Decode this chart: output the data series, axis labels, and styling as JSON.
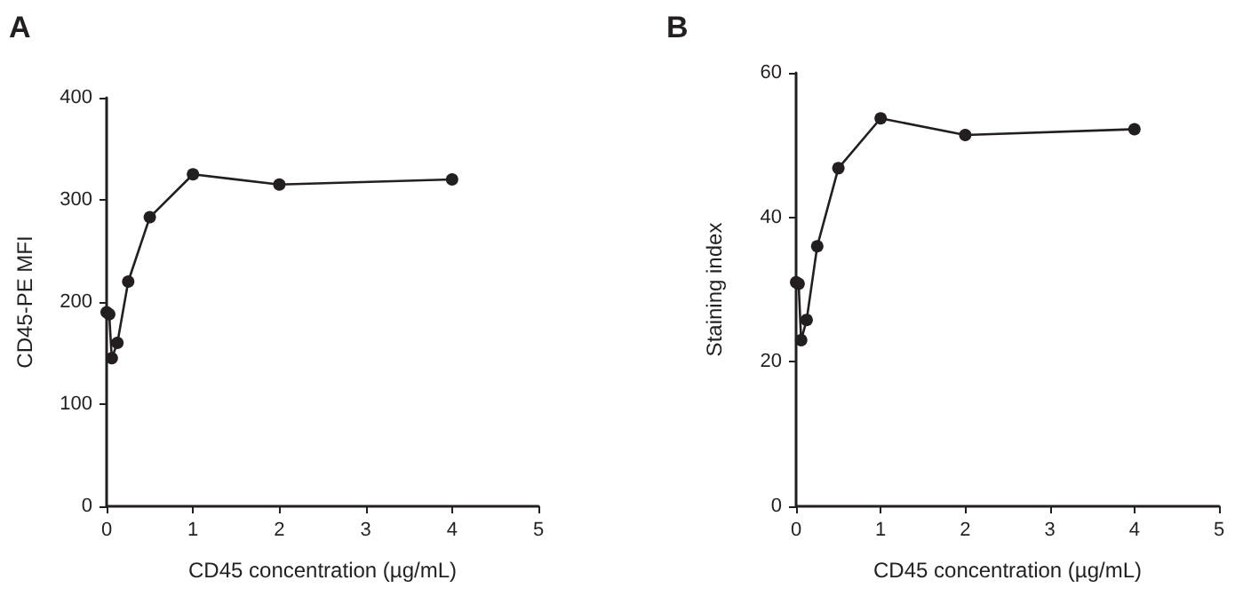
{
  "chart_data": [
    {
      "type": "line",
      "title": "A",
      "xlabel": "CD45 concentration (µg/mL)",
      "ylabel": "CD45-PE MFI",
      "x": [
        0,
        0.03,
        0.06,
        0.125,
        0.25,
        0.5,
        1,
        2,
        4
      ],
      "series": [
        {
          "color": "#231f20",
          "values": [
            190,
            188,
            145,
            160,
            220,
            283,
            325,
            315,
            320
          ]
        }
      ],
      "xlim": [
        0,
        5
      ],
      "xticks": [
        0,
        1,
        2,
        3,
        4,
        5
      ],
      "ylim": [
        0,
        400
      ],
      "yticks": [
        0,
        100,
        200,
        300,
        400
      ],
      "marker": "circle",
      "line_style": "solid",
      "grid": false
    },
    {
      "type": "line",
      "title": "B",
      "xlabel": "CD45 concentration (µg/mL)",
      "ylabel": "Staining index",
      "x": [
        0,
        0.03,
        0.06,
        0.125,
        0.25,
        0.5,
        1,
        2,
        4
      ],
      "series": [
        {
          "color": "#231f20",
          "values": [
            31,
            30.8,
            23,
            25.8,
            36,
            46.8,
            53.7,
            51.4,
            52.2
          ]
        }
      ],
      "xlim": [
        0,
        5
      ],
      "xticks": [
        0,
        1,
        2,
        3,
        4,
        5
      ],
      "ylim": [
        0,
        60
      ],
      "yticks": [
        0,
        20,
        40,
        60
      ],
      "marker": "circle",
      "line_style": "solid",
      "grid": false
    }
  ]
}
